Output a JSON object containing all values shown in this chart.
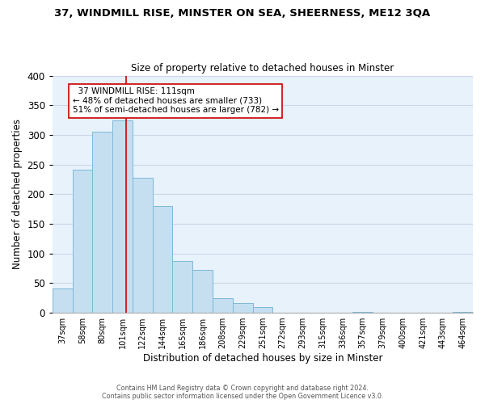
{
  "title": "37, WINDMILL RISE, MINSTER ON SEA, SHEERNESS, ME12 3QA",
  "subtitle": "Size of property relative to detached houses in Minster",
  "xlabel": "Distribution of detached houses by size in Minster",
  "ylabel": "Number of detached properties",
  "bar_labels": [
    "37sqm",
    "58sqm",
    "80sqm",
    "101sqm",
    "122sqm",
    "144sqm",
    "165sqm",
    "186sqm",
    "208sqm",
    "229sqm",
    "251sqm",
    "272sqm",
    "293sqm",
    "315sqm",
    "336sqm",
    "357sqm",
    "379sqm",
    "400sqm",
    "421sqm",
    "443sqm",
    "464sqm"
  ],
  "bar_values": [
    41,
    241,
    305,
    325,
    228,
    180,
    87,
    73,
    25,
    17,
    10,
    0,
    0,
    0,
    0,
    2,
    0,
    0,
    0,
    0,
    2
  ],
  "bar_color": "#c5dff0",
  "bar_edge_color": "#7fb8d8",
  "vline_x": 3.2,
  "vline_color": "#cc0000",
  "annotation_text": "  37 WINDMILL RISE: 111sqm\n← 48% of detached houses are smaller (733)\n51% of semi-detached houses are larger (782) →",
  "annotation_box_color": "white",
  "annotation_box_edge_color": "#cc0000",
  "ylim": [
    0,
    400
  ],
  "yticks": [
    0,
    50,
    100,
    150,
    200,
    250,
    300,
    350,
    400
  ],
  "footer_line1": "Contains HM Land Registry data © Crown copyright and database right 2024.",
  "footer_line2": "Contains public sector information licensed under the Open Government Licence v3.0.",
  "grid_color": "#c8d8e8",
  "background_color": "#e8f2fa",
  "fig_width": 6.0,
  "fig_height": 5.0,
  "dpi": 100
}
